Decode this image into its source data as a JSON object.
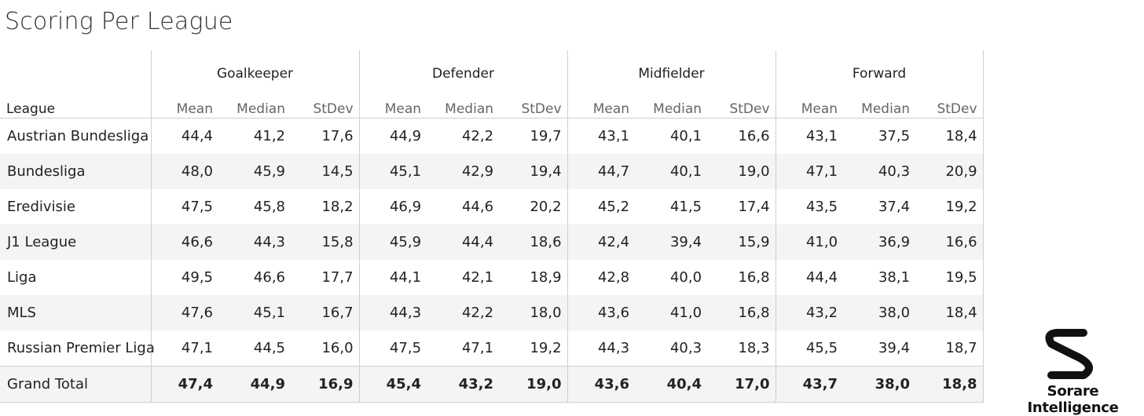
{
  "title": "Scoring Per League",
  "brand": "Sorare Intelligence",
  "chart_data": {
    "type": "table",
    "title": "Scoring Per League",
    "row_header": "League",
    "groups": [
      "Goalkeeper",
      "Defender",
      "Midfielder",
      "Forward"
    ],
    "measures": [
      "Mean",
      "Median",
      "StDev"
    ],
    "rows": [
      {
        "league": "Austrian Bundesliga",
        "values": [
          "44,4",
          "41,2",
          "17,6",
          "44,9",
          "42,2",
          "19,7",
          "43,1",
          "40,1",
          "16,6",
          "43,1",
          "37,5",
          "18,4"
        ]
      },
      {
        "league": "Bundesliga",
        "values": [
          "48,0",
          "45,9",
          "14,5",
          "45,1",
          "42,9",
          "19,4",
          "44,7",
          "40,1",
          "19,0",
          "47,1",
          "40,3",
          "20,9"
        ]
      },
      {
        "league": "Eredivisie",
        "values": [
          "47,5",
          "45,8",
          "18,2",
          "46,9",
          "44,6",
          "20,2",
          "45,2",
          "41,5",
          "17,4",
          "43,5",
          "37,4",
          "19,2"
        ]
      },
      {
        "league": "J1 League",
        "values": [
          "46,6",
          "44,3",
          "15,8",
          "45,9",
          "44,4",
          "18,6",
          "42,4",
          "39,4",
          "15,9",
          "41,0",
          "36,9",
          "16,6"
        ]
      },
      {
        "league": "Liga",
        "values": [
          "49,5",
          "46,6",
          "17,7",
          "44,1",
          "42,1",
          "18,9",
          "42,8",
          "40,0",
          "16,8",
          "44,4",
          "38,1",
          "19,5"
        ]
      },
      {
        "league": "MLS",
        "values": [
          "47,6",
          "45,1",
          "16,7",
          "44,3",
          "42,2",
          "18,0",
          "43,6",
          "41,0",
          "16,8",
          "43,2",
          "38,0",
          "18,4"
        ]
      },
      {
        "league": "Russian Premier Liga",
        "values": [
          "47,1",
          "44,5",
          "16,0",
          "47,5",
          "47,1",
          "19,2",
          "44,3",
          "40,3",
          "18,3",
          "45,5",
          "39,4",
          "18,7"
        ]
      }
    ],
    "total": {
      "league": "Grand Total",
      "values": [
        "47,4",
        "44,9",
        "16,9",
        "45,4",
        "43,2",
        "19,0",
        "43,6",
        "40,4",
        "17,0",
        "43,7",
        "38,0",
        "18,8"
      ]
    }
  }
}
